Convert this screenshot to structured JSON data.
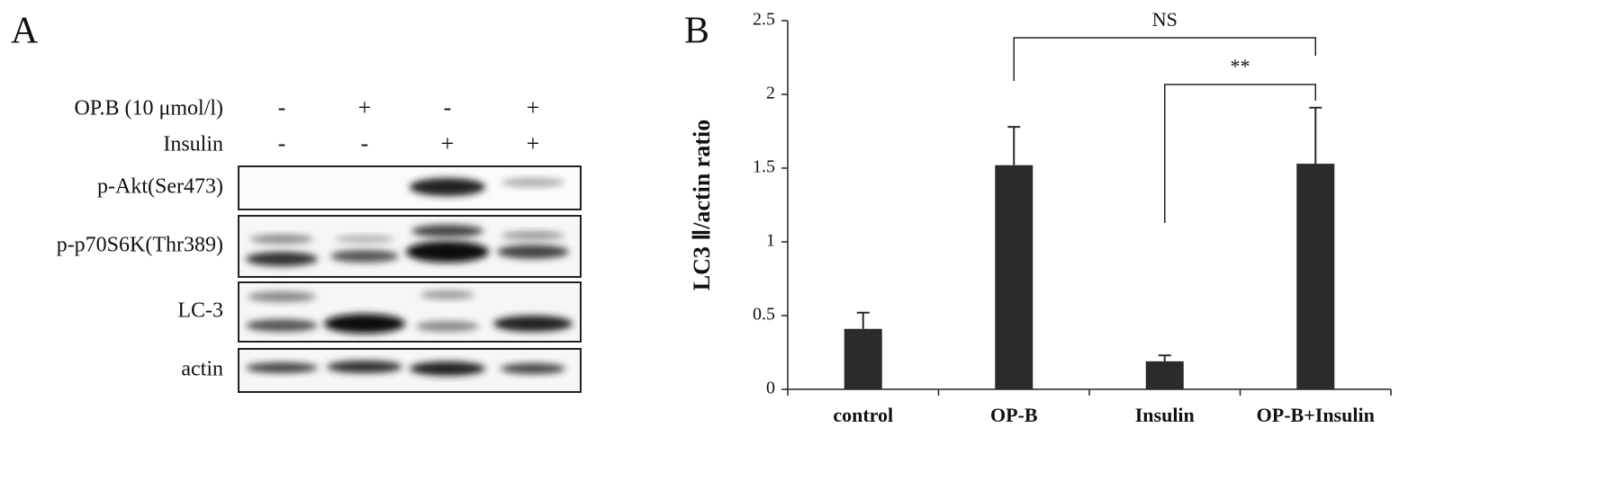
{
  "panel_a": {
    "label": "A",
    "treatments": [
      {
        "label": "OP.B (10 μmol/l)",
        "signs": [
          "-",
          "+",
          "-",
          "+"
        ]
      },
      {
        "label": "Insulin",
        "signs": [
          "-",
          "-",
          "+",
          "+"
        ]
      }
    ],
    "blots": [
      "p-Akt(Ser473)",
      "p-p70S6K(Thr389)",
      "LC-3",
      "actin"
    ]
  },
  "chart_data": {
    "type": "bar",
    "panel_label": "B",
    "y_label": "LC3 Ⅱ/actin ratio",
    "categories": [
      "control",
      "OP-B",
      "Insulin",
      "OP-B+Insulin"
    ],
    "values": [
      0.41,
      1.52,
      0.19,
      1.53
    ],
    "errors": [
      0.11,
      0.26,
      0.04,
      0.38
    ],
    "color": "#2b2b2b",
    "ylim": [
      0,
      2.5
    ],
    "yticks": [
      0,
      0.5,
      1,
      1.5,
      2,
      2.5
    ],
    "annotations": [
      {
        "text": "NS",
        "from": 1,
        "to": 3
      },
      {
        "text": "**",
        "from": 2,
        "to": 3
      }
    ]
  }
}
